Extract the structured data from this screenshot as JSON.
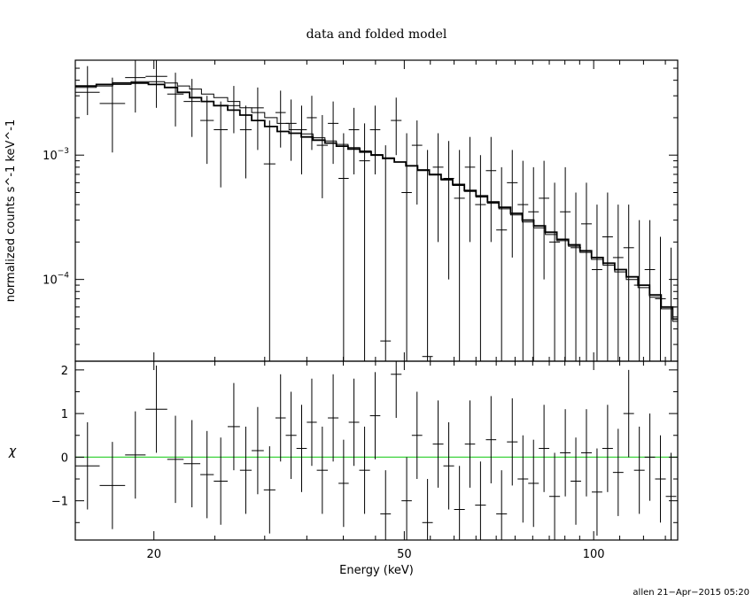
{
  "chart_data": [
    {
      "type": "step+errorbar",
      "title": "data and folded model",
      "xlabel": "",
      "ylabel": "normalized counts s^-1 keV^-1",
      "xscale": "log",
      "yscale": "log",
      "xlim": [
        15,
        136
      ],
      "ylim": [
        2.2e-05,
        0.0058
      ],
      "ytick_labels": [
        {
          "value": 0.001,
          "base": "10",
          "exp": "−3"
        },
        {
          "value": 0.0001,
          "base": "10",
          "exp": "−4"
        }
      ],
      "data_bins": [
        {
          "lo": 15.0,
          "hi": 16.4,
          "y": 0.0032,
          "ylo": 0.0021,
          "yhi": 0.0052
        },
        {
          "lo": 16.4,
          "hi": 18.0,
          "y": 0.0026,
          "ylo": 0.00105,
          "yhi": 0.0042
        },
        {
          "lo": 18.0,
          "hi": 19.4,
          "y": 0.0042,
          "ylo": 0.0022,
          "yhi": 0.0058
        },
        {
          "lo": 19.4,
          "hi": 21.0,
          "y": 0.0043,
          "ylo": 0.0024,
          "yhi": 0.0058
        },
        {
          "lo": 21.0,
          "hi": 22.3,
          "y": 0.0031,
          "ylo": 0.0017,
          "yhi": 0.0046
        },
        {
          "lo": 22.3,
          "hi": 23.7,
          "y": 0.0027,
          "ylo": 0.0014,
          "yhi": 0.0041
        },
        {
          "lo": 23.7,
          "hi": 24.9,
          "y": 0.0019,
          "ylo": 0.00085,
          "yhi": 0.003
        },
        {
          "lo": 24.9,
          "hi": 26.2,
          "y": 0.0016,
          "ylo": 0.00055,
          "yhi": 0.0027
        },
        {
          "lo": 26.2,
          "hi": 27.4,
          "y": 0.0025,
          "ylo": 0.0015,
          "yhi": 0.0036
        },
        {
          "lo": 27.4,
          "hi": 28.6,
          "y": 0.0016,
          "ylo": 0.00065,
          "yhi": 0.0025
        },
        {
          "lo": 28.6,
          "hi": 29.9,
          "y": 0.0024,
          "ylo": 0.0011,
          "yhi": 0.0035
        },
        {
          "lo": 29.9,
          "hi": 31.2,
          "y": 0.00085,
          "ylo": 2.2e-05,
          "yhi": 0.0019
        },
        {
          "lo": 31.2,
          "hi": 32.4,
          "y": 0.0022,
          "ylo": 0.00115,
          "yhi": 0.0033
        },
        {
          "lo": 32.4,
          "hi": 33.7,
          "y": 0.0018,
          "ylo": 0.0009,
          "yhi": 0.0028
        },
        {
          "lo": 33.7,
          "hi": 35.0,
          "y": 0.0016,
          "ylo": 0.0007,
          "yhi": 0.0025
        },
        {
          "lo": 35.0,
          "hi": 36.3,
          "y": 0.002,
          "ylo": 0.0011,
          "yhi": 0.003
        },
        {
          "lo": 36.3,
          "hi": 37.8,
          "y": 0.0012,
          "ylo": 0.00045,
          "yhi": 0.0021
        },
        {
          "lo": 37.8,
          "hi": 39.3,
          "y": 0.0018,
          "ylo": 0.00085,
          "yhi": 0.0027
        },
        {
          "lo": 39.3,
          "hi": 40.8,
          "y": 0.00065,
          "ylo": 2.2e-05,
          "yhi": 0.0015
        },
        {
          "lo": 40.8,
          "hi": 42.4,
          "y": 0.0016,
          "ylo": 0.0007,
          "yhi": 0.0024
        },
        {
          "lo": 42.4,
          "hi": 44.1,
          "y": 0.0009,
          "ylo": 2.2e-05,
          "yhi": 0.0018
        },
        {
          "lo": 44.1,
          "hi": 45.8,
          "y": 0.0016,
          "ylo": 0.0007,
          "yhi": 0.0025
        },
        {
          "lo": 45.8,
          "hi": 47.6,
          "y": 3.2e-05,
          "ylo": 2.2e-05,
          "yhi": 0.0012
        },
        {
          "lo": 47.6,
          "hi": 49.5,
          "y": 0.0019,
          "ylo": 0.001,
          "yhi": 0.0029
        },
        {
          "lo": 49.5,
          "hi": 51.4,
          "y": 0.0005,
          "ylo": 2.2e-05,
          "yhi": 0.0015
        },
        {
          "lo": 51.4,
          "hi": 53.4,
          "y": 0.0012,
          "ylo": 0.0004,
          "yhi": 0.0019
        },
        {
          "lo": 53.4,
          "hi": 55.5,
          "y": 2.4e-05,
          "ylo": 2.2e-05,
          "yhi": 0.0011
        },
        {
          "lo": 55.5,
          "hi": 57.7,
          "y": 0.0008,
          "ylo": 0.0002,
          "yhi": 0.0015
        },
        {
          "lo": 57.7,
          "hi": 60.0,
          "y": 0.00065,
          "ylo": 0.0001,
          "yhi": 0.0013
        },
        {
          "lo": 60.0,
          "hi": 62.4,
          "y": 0.00045,
          "ylo": 2.2e-05,
          "yhi": 0.0011
        },
        {
          "lo": 62.4,
          "hi": 64.8,
          "y": 0.0008,
          "ylo": 0.0002,
          "yhi": 0.0014
        },
        {
          "lo": 64.8,
          "hi": 67.4,
          "y": 0.0004,
          "ylo": 2.2e-05,
          "yhi": 0.001
        },
        {
          "lo": 67.4,
          "hi": 70.0,
          "y": 0.00075,
          "ylo": 0.0002,
          "yhi": 0.0014
        },
        {
          "lo": 70.0,
          "hi": 72.8,
          "y": 0.00025,
          "ylo": 2.2e-05,
          "yhi": 0.0008
        },
        {
          "lo": 72.8,
          "hi": 75.7,
          "y": 0.0006,
          "ylo": 0.00015,
          "yhi": 0.0011
        },
        {
          "lo": 75.7,
          "hi": 78.7,
          "y": 0.0004,
          "ylo": 2.2e-05,
          "yhi": 0.0009
        },
        {
          "lo": 78.7,
          "hi": 81.8,
          "y": 0.00035,
          "ylo": 2.2e-05,
          "yhi": 0.0008
        },
        {
          "lo": 81.8,
          "hi": 85.0,
          "y": 0.00045,
          "ylo": 0.0001,
          "yhi": 0.0009
        },
        {
          "lo": 85.0,
          "hi": 88.4,
          "y": 0.0002,
          "ylo": 2.2e-05,
          "yhi": 0.0006
        },
        {
          "lo": 88.4,
          "hi": 91.9,
          "y": 0.00035,
          "ylo": 2.2e-05,
          "yhi": 0.0008
        },
        {
          "lo": 91.9,
          "hi": 95.5,
          "y": 0.00018,
          "ylo": 2.2e-05,
          "yhi": 0.0005
        },
        {
          "lo": 95.5,
          "hi": 99.3,
          "y": 0.00028,
          "ylo": 2.2e-05,
          "yhi": 0.0006
        },
        {
          "lo": 99.3,
          "hi": 103.2,
          "y": 0.00012,
          "ylo": 2.2e-05,
          "yhi": 0.0004
        },
        {
          "lo": 103.2,
          "hi": 107.3,
          "y": 0.00022,
          "ylo": 2.2e-05,
          "yhi": 0.0005
        },
        {
          "lo": 107.3,
          "hi": 111.5,
          "y": 0.00015,
          "ylo": 2.2e-05,
          "yhi": 0.0004
        },
        {
          "lo": 111.5,
          "hi": 115.9,
          "y": 0.00018,
          "ylo": 2.2e-05,
          "yhi": 0.0004
        },
        {
          "lo": 115.9,
          "hi": 120.5,
          "y": 9e-05,
          "ylo": 2.2e-05,
          "yhi": 0.0003
        },
        {
          "lo": 120.5,
          "hi": 125.2,
          "y": 0.00012,
          "ylo": 2.2e-05,
          "yhi": 0.0003
        },
        {
          "lo": 125.2,
          "hi": 130.2,
          "y": 7e-05,
          "ylo": 2.2e-05,
          "yhi": 0.00022
        },
        {
          "lo": 130.2,
          "hi": 135.3,
          "y": 6e-05,
          "ylo": 2.2e-05,
          "yhi": 0.00018
        }
      ],
      "model_step": {
        "edges": [
          15.0,
          16.2,
          17.2,
          18.4,
          19.6,
          20.8,
          21.8,
          22.8,
          23.8,
          24.9,
          26.2,
          27.4,
          28.6,
          30.0,
          31.4,
          32.8,
          34.3,
          35.8,
          37.4,
          39.0,
          40.7,
          42.5,
          44.3,
          46.2,
          48.2,
          50.3,
          52.5,
          54.8,
          57.2,
          59.7,
          62.3,
          65.0,
          67.8,
          70.7,
          73.8,
          77.0,
          80.3,
          83.8,
          87.4,
          91.2,
          95.1,
          99.2,
          103.5,
          108.0,
          112.7,
          117.6,
          122.7,
          128.0,
          133.5,
          136.0
        ],
        "values": [
          0.0036,
          0.0037,
          0.0038,
          0.0038,
          0.0037,
          0.0035,
          0.0032,
          0.0029,
          0.0027,
          0.0025,
          0.0023,
          0.0021,
          0.0019,
          0.0017,
          0.00155,
          0.0015,
          0.0014,
          0.00132,
          0.00125,
          0.00118,
          0.00112,
          0.00106,
          0.001,
          0.00094,
          0.00088,
          0.00082,
          0.00076,
          0.0007,
          0.00064,
          0.00058,
          0.00052,
          0.00047,
          0.00042,
          0.00038,
          0.00034,
          0.0003,
          0.00027,
          0.00024,
          0.00021,
          0.00019,
          0.00017,
          0.00015,
          0.000135,
          0.00012,
          0.000105,
          9e-05,
          7.5e-05,
          6e-05,
          4.8e-05
        ],
        "secondary_values": [
          0.0035,
          0.0036,
          0.0037,
          0.0039,
          0.0039,
          0.0038,
          0.0036,
          0.0034,
          0.0031,
          0.0029,
          0.0027,
          0.0024,
          0.0022,
          0.002,
          0.0018,
          0.0016,
          0.00148,
          0.00138,
          0.0013,
          0.00122,
          0.00115,
          0.00108,
          0.00101,
          0.00095,
          0.00088,
          0.00082,
          0.00075,
          0.00069,
          0.00063,
          0.00057,
          0.00051,
          0.00046,
          0.00041,
          0.00037,
          0.00033,
          0.00029,
          0.00026,
          0.00023,
          0.000205,
          0.000185,
          0.000165,
          0.000145,
          0.00013,
          0.000115,
          0.0001,
          8.6e-05,
          7.2e-05,
          5.8e-05,
          4.6e-05
        ]
      }
    },
    {
      "type": "errorbar",
      "title": "",
      "xlabel": "Energy (keV)",
      "ylabel": "χ",
      "xscale": "log",
      "yscale": "linear",
      "xlim": [
        15,
        136
      ],
      "ylim": [
        -1.9,
        2.2
      ],
      "xticks": [
        20,
        50,
        100
      ],
      "xtick_labels": [
        "20",
        "50",
        "100"
      ],
      "yticks": [
        -1,
        0,
        1,
        2
      ],
      "ytick_labels": [
        "−1",
        "0",
        "1",
        "2"
      ],
      "zero_line_color": "#3cd23c",
      "residuals": [
        {
          "lo": 15.0,
          "hi": 16.4,
          "y": -0.2,
          "ylo": -1.2,
          "yhi": 0.8
        },
        {
          "lo": 16.4,
          "hi": 18.0,
          "y": -0.65,
          "ylo": -1.65,
          "yhi": 0.35
        },
        {
          "lo": 18.0,
          "hi": 19.4,
          "y": 0.05,
          "ylo": -0.95,
          "yhi": 1.05
        },
        {
          "lo": 19.4,
          "hi": 21.0,
          "y": 1.1,
          "ylo": 0.1,
          "yhi": 2.1
        },
        {
          "lo": 21.0,
          "hi": 22.3,
          "y": -0.05,
          "ylo": -1.05,
          "yhi": 0.95
        },
        {
          "lo": 22.3,
          "hi": 23.7,
          "y": -0.15,
          "ylo": -1.15,
          "yhi": 0.85
        },
        {
          "lo": 23.7,
          "hi": 24.9,
          "y": -0.4,
          "ylo": -1.4,
          "yhi": 0.6
        },
        {
          "lo": 24.9,
          "hi": 26.2,
          "y": -0.55,
          "ylo": -1.55,
          "yhi": 0.45
        },
        {
          "lo": 26.2,
          "hi": 27.4,
          "y": 0.7,
          "ylo": -0.3,
          "yhi": 1.7
        },
        {
          "lo": 27.4,
          "hi": 28.6,
          "y": -0.3,
          "ylo": -1.3,
          "yhi": 0.7
        },
        {
          "lo": 28.6,
          "hi": 29.9,
          "y": 0.15,
          "ylo": -0.85,
          "yhi": 1.15
        },
        {
          "lo": 29.9,
          "hi": 31.2,
          "y": -0.75,
          "ylo": -1.75,
          "yhi": 0.25
        },
        {
          "lo": 31.2,
          "hi": 32.4,
          "y": 0.9,
          "ylo": -0.1,
          "yhi": 1.9
        },
        {
          "lo": 32.4,
          "hi": 33.7,
          "y": 0.5,
          "ylo": -0.5,
          "yhi": 1.5
        },
        {
          "lo": 33.7,
          "hi": 35.0,
          "y": 0.2,
          "ylo": -0.8,
          "yhi": 1.2
        },
        {
          "lo": 35.0,
          "hi": 36.3,
          "y": 0.8,
          "ylo": -0.2,
          "yhi": 1.8
        },
        {
          "lo": 36.3,
          "hi": 37.8,
          "y": -0.3,
          "ylo": -1.3,
          "yhi": 0.7
        },
        {
          "lo": 37.8,
          "hi": 39.3,
          "y": 0.9,
          "ylo": -0.1,
          "yhi": 1.9
        },
        {
          "lo": 39.3,
          "hi": 40.8,
          "y": -0.6,
          "ylo": -1.6,
          "yhi": 0.4
        },
        {
          "lo": 40.8,
          "hi": 42.4,
          "y": 0.8,
          "ylo": -0.2,
          "yhi": 1.8
        },
        {
          "lo": 42.4,
          "hi": 44.1,
          "y": -0.3,
          "ylo": -1.3,
          "yhi": 0.7
        },
        {
          "lo": 44.1,
          "hi": 45.8,
          "y": 0.95,
          "ylo": -0.05,
          "yhi": 1.95
        },
        {
          "lo": 45.8,
          "hi": 47.6,
          "y": -1.3,
          "ylo": -1.9,
          "yhi": -0.3
        },
        {
          "lo": 47.6,
          "hi": 49.5,
          "y": 1.9,
          "ylo": 0.9,
          "yhi": 2.2
        },
        {
          "lo": 49.5,
          "hi": 51.4,
          "y": -1.0,
          "ylo": -1.9,
          "yhi": 0.0
        },
        {
          "lo": 51.4,
          "hi": 53.4,
          "y": 0.5,
          "ylo": -0.5,
          "yhi": 1.5
        },
        {
          "lo": 53.4,
          "hi": 55.5,
          "y": -1.5,
          "ylo": -1.9,
          "yhi": -0.5
        },
        {
          "lo": 55.5,
          "hi": 57.7,
          "y": 0.3,
          "ylo": -0.7,
          "yhi": 1.3
        },
        {
          "lo": 57.7,
          "hi": 60.0,
          "y": -0.2,
          "ylo": -1.2,
          "yhi": 0.8
        },
        {
          "lo": 60.0,
          "hi": 62.4,
          "y": -1.2,
          "ylo": -1.9,
          "yhi": -0.2
        },
        {
          "lo": 62.4,
          "hi": 64.8,
          "y": 0.3,
          "ylo": -0.7,
          "yhi": 1.3
        },
        {
          "lo": 64.8,
          "hi": 67.4,
          "y": -1.1,
          "ylo": -1.9,
          "yhi": -0.1
        },
        {
          "lo": 67.4,
          "hi": 70.0,
          "y": 0.4,
          "ylo": -0.6,
          "yhi": 1.4
        },
        {
          "lo": 70.0,
          "hi": 72.8,
          "y": -1.3,
          "ylo": -1.9,
          "yhi": -0.3
        },
        {
          "lo": 72.8,
          "hi": 75.7,
          "y": 0.35,
          "ylo": -0.65,
          "yhi": 1.35
        },
        {
          "lo": 75.7,
          "hi": 78.7,
          "y": -0.5,
          "ylo": -1.5,
          "yhi": 0.5
        },
        {
          "lo": 78.7,
          "hi": 81.8,
          "y": -0.6,
          "ylo": -1.6,
          "yhi": 0.4
        },
        {
          "lo": 81.8,
          "hi": 85.0,
          "y": 0.2,
          "ylo": -0.8,
          "yhi": 1.2
        },
        {
          "lo": 85.0,
          "hi": 88.4,
          "y": -0.9,
          "ylo": -1.9,
          "yhi": 0.1
        },
        {
          "lo": 88.4,
          "hi": 91.9,
          "y": 0.1,
          "ylo": -0.9,
          "yhi": 1.1
        },
        {
          "lo": 91.9,
          "hi": 95.5,
          "y": -0.55,
          "ylo": -1.55,
          "yhi": 0.45
        },
        {
          "lo": 95.5,
          "hi": 99.3,
          "y": 0.1,
          "ylo": -0.9,
          "yhi": 1.1
        },
        {
          "lo": 99.3,
          "hi": 103.2,
          "y": -0.8,
          "ylo": -1.8,
          "yhi": 0.2
        },
        {
          "lo": 103.2,
          "hi": 107.3,
          "y": 0.2,
          "ylo": -0.8,
          "yhi": 1.2
        },
        {
          "lo": 107.3,
          "hi": 111.5,
          "y": -0.35,
          "ylo": -1.35,
          "yhi": 0.65
        },
        {
          "lo": 111.5,
          "hi": 115.9,
          "y": 1.0,
          "ylo": 0.0,
          "yhi": 2.0
        },
        {
          "lo": 115.9,
          "hi": 120.5,
          "y": -0.3,
          "ylo": -1.3,
          "yhi": 0.7
        },
        {
          "lo": 120.5,
          "hi": 125.2,
          "y": 0.0,
          "ylo": -1.0,
          "yhi": 1.0
        },
        {
          "lo": 125.2,
          "hi": 130.2,
          "y": -0.5,
          "ylo": -1.5,
          "yhi": 0.5
        },
        {
          "lo": 130.2,
          "hi": 135.3,
          "y": -0.9,
          "ylo": -1.9,
          "yhi": 0.1
        }
      ]
    }
  ],
  "footer": {
    "stamp": "allen 21−Apr−2015 05:20"
  }
}
